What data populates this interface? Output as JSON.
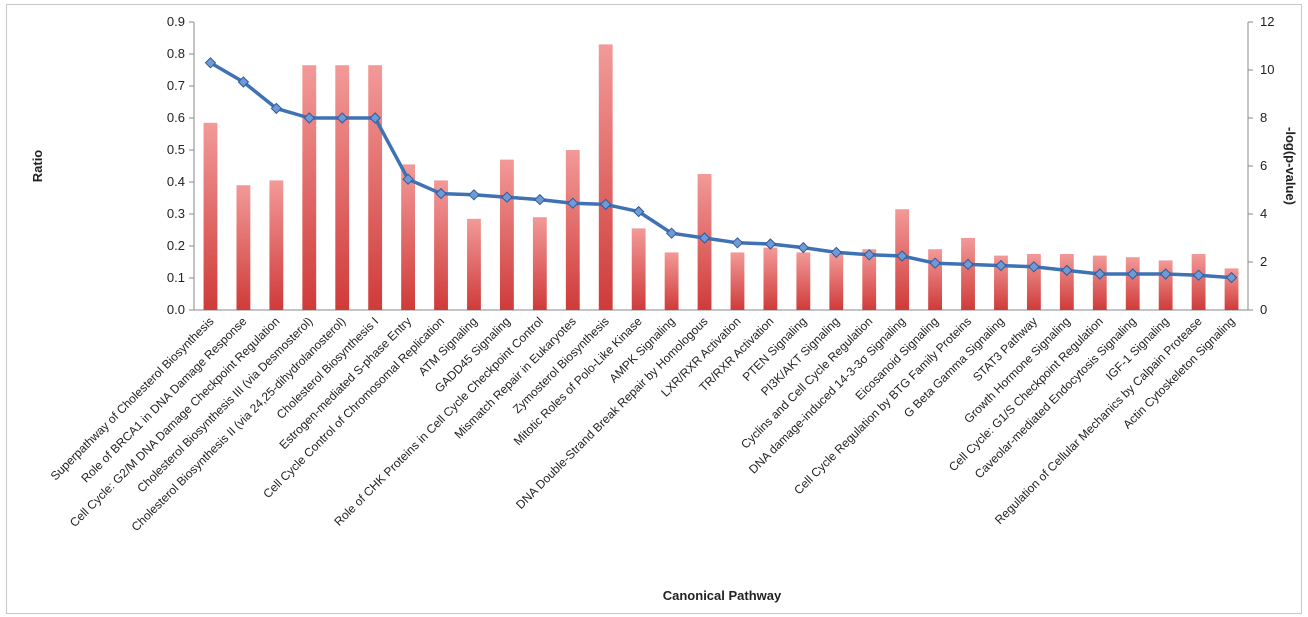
{
  "chart_data": {
    "type": "bar",
    "xlabel": "Canonical Pathway",
    "ylabel": "Ratio",
    "y2label": "-log(p-value)",
    "ylim": [
      0,
      0.9
    ],
    "y2lim": [
      0,
      12
    ],
    "yticks": [
      "0.0",
      "0.1",
      "0.2",
      "0.3",
      "0.4",
      "0.5",
      "0.6",
      "0.7",
      "0.8",
      "0.9"
    ],
    "y2ticks": [
      "0",
      "2",
      "4",
      "6",
      "8",
      "10",
      "12"
    ],
    "grid": false,
    "legend": "none",
    "categories": [
      "Superpathway of Cholesterol Biosynthesis",
      "Role of BRCA1 in DNA Damage Response",
      "Cell Cycle: G2/M DNA Damage Checkpoint Regulation",
      "Cholesterol Biosynthesis III (via Desmosterol)",
      "Cholesterol Biosynthesis II (via 24,25-dihydrolanosterol)",
      "Cholesterol Biosynthesis I",
      "Estrogen-mediated S-phase Entry",
      "Cell Cycle Control of Chromosomal Replication",
      "ATM Signaling",
      "GADD45 Signaling",
      "Role of CHK Proteins in Cell Cycle Checkpoint Control",
      "Mismatch Repair in Eukaryotes",
      "Zymosterol Biosynthesis",
      "Mitotic Roles of Polo-Like Kinase",
      "AMPK Signaling",
      "DNA Double-Strand Break Repair by Homologous",
      "LXR/RXR Activation",
      "TR/RXR Activation",
      "PTEN Signaling",
      "PI3K/AKT Signaling",
      "Cyclins and Cell Cycle Regulation",
      "DNA damage-induced 14-3-3σ Signaling",
      "Eicosanoid Signaling",
      "Cell Cycle Regulation by BTG Family Proteins",
      "G Beta Gamma Signaling",
      "STAT3 Pathway",
      "Growth Hormone Signaling",
      "Cell Cycle: G1/S Checkpoint Regulation",
      "Caveolar-mediated Endocytosis Signaling",
      "IGF-1 Signaling",
      "Regulation of Cellular Mechanics by Calpain Protease",
      "Actin Cytoskeleton Signaling"
    ],
    "series": [
      {
        "type": "bar",
        "axis": "left",
        "color": "#d9413f",
        "values": [
          0.585,
          0.39,
          0.405,
          0.765,
          0.765,
          0.765,
          0.455,
          0.405,
          0.285,
          0.47,
          0.29,
          0.5,
          0.83,
          0.255,
          0.18,
          0.425,
          0.18,
          0.195,
          0.18,
          0.175,
          0.19,
          0.315,
          0.19,
          0.225,
          0.17,
          0.175,
          0.175,
          0.17,
          0.165,
          0.155,
          0.175,
          0.13
        ]
      },
      {
        "type": "line",
        "axis": "right",
        "color": "#3f71b5",
        "values": [
          10.3,
          9.5,
          8.4,
          8.0,
          8.0,
          8.0,
          5.45,
          4.85,
          4.8,
          4.7,
          4.6,
          4.45,
          4.4,
          4.1,
          3.2,
          3.0,
          2.8,
          2.75,
          2.6,
          2.4,
          2.3,
          2.25,
          1.95,
          1.9,
          1.85,
          1.8,
          1.65,
          1.5,
          1.5,
          1.5,
          1.45,
          1.35
        ]
      }
    ]
  }
}
